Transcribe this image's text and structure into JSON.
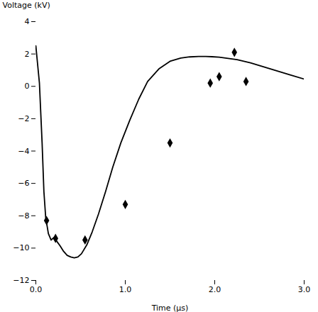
{
  "chart_data": {
    "type": "line",
    "xlabel": "Time (μs)",
    "ylabel": "Voltage (kV)",
    "xlim": [
      0,
      3
    ],
    "ylim": [
      -12,
      4
    ],
    "xticks": [
      0,
      1,
      2,
      3
    ],
    "yticks": [
      -12,
      -10,
      -8,
      -6,
      -4,
      -2,
      0,
      2,
      4
    ],
    "grid": false,
    "series": [
      {
        "type": "line",
        "color": "#000000",
        "x": [
          0.0,
          0.04,
          0.07,
          0.09,
          0.11,
          0.14,
          0.17,
          0.2,
          0.23,
          0.27,
          0.31,
          0.35,
          0.39,
          0.43,
          0.47,
          0.51,
          0.57,
          0.63,
          0.7,
          0.78,
          0.86,
          0.95,
          1.05,
          1.15,
          1.25,
          1.38,
          1.5,
          1.62,
          1.72,
          1.82,
          1.9,
          1.97,
          2.05,
          2.15,
          2.25,
          2.4,
          2.55,
          2.7,
          2.85,
          3.0
        ],
        "values": [
          2.5,
          0.2,
          -3.5,
          -6.5,
          -8.1,
          -9.1,
          -9.5,
          -9.35,
          -9.55,
          -9.85,
          -10.2,
          -10.45,
          -10.55,
          -10.6,
          -10.55,
          -10.35,
          -9.8,
          -9.0,
          -7.9,
          -6.5,
          -5.0,
          -3.5,
          -2.1,
          -0.8,
          0.3,
          1.1,
          1.55,
          1.75,
          1.82,
          1.85,
          1.85,
          1.83,
          1.8,
          1.73,
          1.65,
          1.45,
          1.2,
          0.95,
          0.7,
          0.45
        ]
      },
      {
        "type": "scatter",
        "color": "#000000",
        "marker": "diamond",
        "x": [
          0.12,
          0.22,
          0.55,
          1.0,
          1.5,
          1.95,
          2.05,
          2.22,
          2.35
        ],
        "values": [
          -8.3,
          -9.4,
          -9.5,
          -7.3,
          -3.5,
          0.2,
          0.6,
          2.1,
          0.3
        ]
      }
    ]
  }
}
